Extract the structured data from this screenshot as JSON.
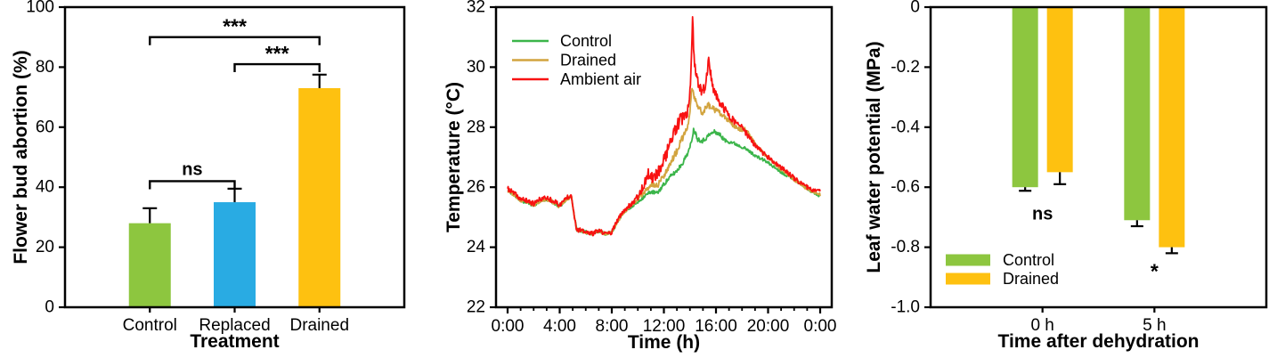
{
  "figure": {
    "background": "#ffffff",
    "axis_color": "#000000"
  },
  "chart_data": [
    {
      "id": "flower-bud-abortion",
      "type": "bar",
      "title": "",
      "xlabel": "Treatment",
      "ylabel": "Flower bud abortion (%)",
      "categories": [
        "Control",
        "Replaced",
        "Drained"
      ],
      "values": [
        28,
        35,
        73
      ],
      "errors": [
        5,
        4.5,
        4.5
      ],
      "bar_colors": [
        "#8dc63f",
        "#29abe3",
        "#fec110"
      ],
      "ylim": [
        0,
        100
      ],
      "yticks": [
        {
          "v": 0,
          "label": "0"
        },
        {
          "v": 20,
          "label": "20"
        },
        {
          "v": 40,
          "label": "40"
        },
        {
          "v": 60,
          "label": "60"
        },
        {
          "v": 80,
          "label": "80"
        },
        {
          "v": 100,
          "label": "100"
        }
      ],
      "significance": [
        {
          "a": 0,
          "b": 1,
          "h": 42,
          "label": "ns"
        },
        {
          "a": 1,
          "b": 2,
          "h": 81,
          "label": "***"
        },
        {
          "a": 0,
          "b": 2,
          "h": 90,
          "label": "***"
        }
      ]
    },
    {
      "id": "greenhouse-temperature",
      "type": "line",
      "title": "",
      "xlabel": "Time (h)",
      "ylabel": "Temperature (°C)",
      "xlim": [
        0,
        24
      ],
      "ylim": [
        22,
        32
      ],
      "yticks": [
        {
          "v": 22,
          "label": "22"
        },
        {
          "v": 24,
          "label": "24"
        },
        {
          "v": 26,
          "label": "26"
        },
        {
          "v": 28,
          "label": "28"
        },
        {
          "v": 30,
          "label": "30"
        },
        {
          "v": 32,
          "label": "32"
        }
      ],
      "xticks": [
        {
          "v": 0,
          "label": "0:00"
        },
        {
          "v": 4,
          "label": "4:00"
        },
        {
          "v": 8,
          "label": "8:00"
        },
        {
          "v": 12,
          "label": "12:00"
        },
        {
          "v": 16,
          "label": "16:00"
        },
        {
          "v": 20,
          "label": "20:00"
        },
        {
          "v": 24,
          "label": "0:00"
        }
      ],
      "legend_position": "top-left",
      "series": [
        {
          "name": "Control",
          "color": "#3bb54a",
          "seed": 11,
          "points": [
            [
              0,
              25.9
            ],
            [
              0.5,
              25.75
            ],
            [
              1,
              25.55
            ],
            [
              1.5,
              25.5
            ],
            [
              2,
              25.4
            ],
            [
              2.5,
              25.55
            ],
            [
              3,
              25.6
            ],
            [
              3.5,
              25.5
            ],
            [
              4,
              25.35
            ],
            [
              4.5,
              25.6
            ],
            [
              4.9,
              25.7
            ],
            [
              5.1,
              25.1
            ],
            [
              5.3,
              24.6
            ],
            [
              6,
              24.5
            ],
            [
              6.5,
              24.45
            ],
            [
              7,
              24.55
            ],
            [
              7.5,
              24.45
            ],
            [
              8,
              24.5
            ],
            [
              8.5,
              24.9
            ],
            [
              9,
              25.2
            ],
            [
              9.5,
              25.35
            ],
            [
              10,
              25.5
            ],
            [
              10.5,
              25.7
            ],
            [
              11,
              25.85
            ],
            [
              11.5,
              25.8
            ],
            [
              12,
              26.1
            ],
            [
              12.5,
              26.35
            ],
            [
              13,
              26.55
            ],
            [
              13.5,
              26.85
            ],
            [
              14,
              27.3
            ],
            [
              14.3,
              27.95
            ],
            [
              14.6,
              27.6
            ],
            [
              15,
              27.55
            ],
            [
              15.5,
              27.75
            ],
            [
              15.9,
              27.85
            ],
            [
              16.3,
              27.75
            ],
            [
              16.7,
              27.55
            ],
            [
              17.2,
              27.5
            ],
            [
              17.7,
              27.4
            ],
            [
              18.2,
              27.3
            ],
            [
              18.7,
              27.15
            ],
            [
              19.2,
              27
            ],
            [
              19.7,
              26.9
            ],
            [
              20.2,
              26.75
            ],
            [
              20.7,
              26.6
            ],
            [
              21.2,
              26.45
            ],
            [
              21.7,
              26.35
            ],
            [
              22.2,
              26.2
            ],
            [
              22.7,
              26.05
            ],
            [
              23.2,
              25.9
            ],
            [
              23.6,
              25.8
            ],
            [
              24,
              25.7
            ]
          ],
          "noise": [
            [
              0,
              0.06
            ],
            [
              5,
              0.06
            ],
            [
              9,
              0.05
            ],
            [
              12,
              0.07
            ],
            [
              15,
              0.08
            ],
            [
              18,
              0.05
            ],
            [
              24,
              0.05
            ]
          ]
        },
        {
          "name": "Drained",
          "color": "#d2a43f",
          "seed": 23,
          "points": [
            [
              0,
              25.9
            ],
            [
              0.5,
              25.75
            ],
            [
              1,
              25.55
            ],
            [
              1.5,
              25.5
            ],
            [
              2,
              25.4
            ],
            [
              2.5,
              25.55
            ],
            [
              3,
              25.6
            ],
            [
              3.5,
              25.5
            ],
            [
              4,
              25.35
            ],
            [
              4.5,
              25.6
            ],
            [
              4.9,
              25.7
            ],
            [
              5.1,
              25.1
            ],
            [
              5.3,
              24.6
            ],
            [
              6,
              24.5
            ],
            [
              6.5,
              24.45
            ],
            [
              7,
              24.55
            ],
            [
              7.5,
              24.45
            ],
            [
              8,
              24.5
            ],
            [
              8.5,
              24.9
            ],
            [
              9,
              25.2
            ],
            [
              9.5,
              25.4
            ],
            [
              10,
              25.6
            ],
            [
              10.5,
              25.85
            ],
            [
              11,
              26.1
            ],
            [
              11.5,
              26.05
            ],
            [
              12,
              26.4
            ],
            [
              12.5,
              26.8
            ],
            [
              13,
              27.2
            ],
            [
              13.5,
              27.7
            ],
            [
              13.9,
              28.1
            ],
            [
              14.15,
              29.3
            ],
            [
              14.4,
              28.9
            ],
            [
              14.7,
              28.6
            ],
            [
              15,
              28.5
            ],
            [
              15.4,
              28.75
            ],
            [
              15.8,
              28.6
            ],
            [
              16.2,
              28.5
            ],
            [
              16.6,
              28.35
            ],
            [
              17,
              28.2
            ],
            [
              17.5,
              28
            ],
            [
              18,
              27.9
            ],
            [
              18.3,
              27.95
            ],
            [
              18.6,
              27.7
            ],
            [
              19,
              27.45
            ],
            [
              19.5,
              27.2
            ],
            [
              20,
              27
            ],
            [
              20.5,
              26.8
            ],
            [
              21,
              26.6
            ],
            [
              21.5,
              26.45
            ],
            [
              22,
              26.25
            ],
            [
              22.5,
              26.1
            ],
            [
              23,
              25.95
            ],
            [
              23.5,
              25.85
            ],
            [
              24,
              25.75
            ]
          ],
          "noise": [
            [
              0,
              0.06
            ],
            [
              5,
              0.06
            ],
            [
              9,
              0.05
            ],
            [
              11,
              0.09
            ],
            [
              13,
              0.12
            ],
            [
              14.5,
              0.12
            ],
            [
              16,
              0.09
            ],
            [
              18,
              0.06
            ],
            [
              24,
              0.05
            ]
          ]
        },
        {
          "name": "Ambient air",
          "color": "#f81212",
          "seed": 37,
          "points": [
            [
              0,
              25.95
            ],
            [
              0.5,
              25.8
            ],
            [
              1,
              25.6
            ],
            [
              1.5,
              25.55
            ],
            [
              2,
              25.45
            ],
            [
              2.5,
              25.6
            ],
            [
              3,
              25.65
            ],
            [
              3.5,
              25.55
            ],
            [
              4,
              25.4
            ],
            [
              4.5,
              25.65
            ],
            [
              4.9,
              25.75
            ],
            [
              5.1,
              25.1
            ],
            [
              5.3,
              24.6
            ],
            [
              6,
              24.5
            ],
            [
              6.5,
              24.45
            ],
            [
              7,
              24.55
            ],
            [
              7.5,
              24.45
            ],
            [
              8,
              24.5
            ],
            [
              8.5,
              24.95
            ],
            [
              9,
              25.25
            ],
            [
              9.5,
              25.45
            ],
            [
              10,
              25.7
            ],
            [
              10.4,
              26
            ],
            [
              10.8,
              26.45
            ],
            [
              11.2,
              26.3
            ],
            [
              11.6,
              26.55
            ],
            [
              12,
              26.9
            ],
            [
              12.4,
              27.4
            ],
            [
              12.8,
              27.8
            ],
            [
              13.2,
              28.2
            ],
            [
              13.6,
              28.3
            ],
            [
              13.9,
              28.6
            ],
            [
              14.1,
              29.9
            ],
            [
              14.2,
              31.6
            ],
            [
              14.35,
              30
            ],
            [
              14.6,
              29.5
            ],
            [
              14.9,
              29.2
            ],
            [
              15.2,
              29.35
            ],
            [
              15.45,
              30.3
            ],
            [
              15.7,
              29.4
            ],
            [
              16,
              29.05
            ],
            [
              16.4,
              28.75
            ],
            [
              16.8,
              28.5
            ],
            [
              17.2,
              28.3
            ],
            [
              17.6,
              28.1
            ],
            [
              18,
              28
            ],
            [
              18.4,
              27.75
            ],
            [
              18.8,
              27.5
            ],
            [
              19.2,
              27.3
            ],
            [
              19.6,
              27.15
            ],
            [
              20,
              27
            ],
            [
              20.5,
              26.8
            ],
            [
              21,
              26.65
            ],
            [
              21.5,
              26.5
            ],
            [
              22,
              26.3
            ],
            [
              22.5,
              26.15
            ],
            [
              23,
              26
            ],
            [
              23.5,
              25.9
            ],
            [
              24,
              25.85
            ]
          ],
          "noise": [
            [
              0,
              0.08
            ],
            [
              4.5,
              0.08
            ],
            [
              6,
              0.08
            ],
            [
              9,
              0.07
            ],
            [
              10.5,
              0.15
            ],
            [
              12,
              0.22
            ],
            [
              13,
              0.25
            ],
            [
              14,
              0.22
            ],
            [
              15,
              0.18
            ],
            [
              16,
              0.15
            ],
            [
              17,
              0.12
            ],
            [
              18,
              0.1
            ],
            [
              20,
              0.08
            ],
            [
              24,
              0.07
            ]
          ]
        }
      ]
    },
    {
      "id": "leaf-water-potential",
      "type": "grouped_bar",
      "title": "",
      "xlabel": "Time after dehydration",
      "ylabel": "Leaf water potential (MPa)",
      "categories": [
        "0 h",
        "5 h"
      ],
      "series": [
        {
          "name": "Control",
          "color": "#8dc63f",
          "values": [
            -0.6,
            -0.71
          ],
          "errors": [
            0.012,
            0.02
          ]
        },
        {
          "name": "Drained",
          "color": "#fec110",
          "values": [
            -0.55,
            -0.8
          ],
          "errors": [
            0.04,
            0.02
          ]
        }
      ],
      "ylim": [
        -1.0,
        0
      ],
      "yticks": [
        {
          "v": 0,
          "label": "0"
        },
        {
          "v": -0.2,
          "label": "-0.2"
        },
        {
          "v": -0.4,
          "label": "-0.4"
        },
        {
          "v": -0.6,
          "label": "-0.6"
        },
        {
          "v": -0.8,
          "label": "-0.8"
        },
        {
          "v": -1.0,
          "label": "-1.0"
        }
      ],
      "significance": [
        {
          "group": 0,
          "label": "ns",
          "y": -0.69
        },
        {
          "group": 1,
          "label": "*",
          "y": -0.88
        }
      ],
      "legend_position": "bottom-left"
    }
  ]
}
